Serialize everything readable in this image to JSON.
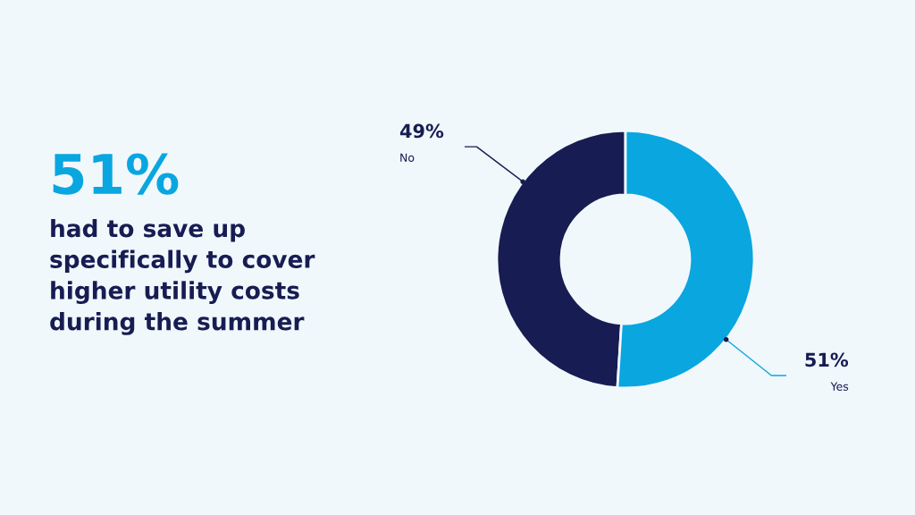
{
  "chart_data": {
    "type": "donut",
    "title": "51%",
    "subtitle": "had to save up\nspecifically to cover\nhigher utility costs\nduring the summer",
    "categories": [
      "No",
      "Yes"
    ],
    "values": [
      49,
      51
    ],
    "colors": [
      "#171d52",
      "#09a6e0"
    ],
    "value_labels": [
      "49%",
      "51%"
    ],
    "legend": false
  }
}
